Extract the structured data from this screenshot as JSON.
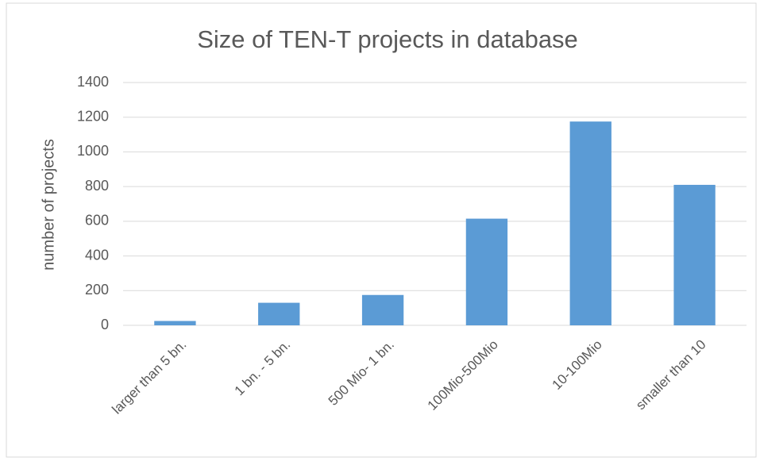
{
  "chart_data": {
    "type": "bar",
    "title": "Size of TEN-T projects in database",
    "y_label": "number of projects",
    "categories": [
      "larger than 5 bn.",
      "1 bn. - 5 bn.",
      "500 Mio- 1 bn.",
      "100Mio-500Mio",
      "10-100Mio",
      "smaller than 10"
    ],
    "values": [
      25,
      130,
      175,
      615,
      1175,
      810
    ],
    "color": "#5b9bd5",
    "ylim": [
      0,
      1400
    ],
    "yticks": [
      0,
      200,
      400,
      600,
      800,
      1000,
      1200,
      1400
    ],
    "grid": true
  }
}
